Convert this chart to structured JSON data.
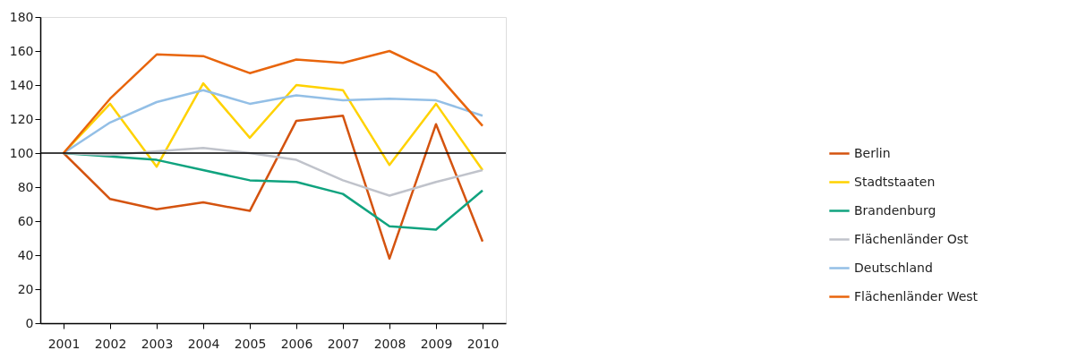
{
  "chart_data": {
    "type": "line",
    "categories": [
      "2001",
      "2002",
      "2003",
      "2004",
      "2005",
      "2006",
      "2007",
      "2008",
      "2009",
      "2010"
    ],
    "series": [
      {
        "name": "Berlin",
        "color": "#d4530f",
        "values": [
          100,
          73,
          67,
          71,
          66,
          119,
          122,
          38,
          117,
          48
        ]
      },
      {
        "name": "Stadtstaaten",
        "color": "#ffd200",
        "values": [
          100,
          129,
          92,
          141,
          109,
          140,
          137,
          93,
          129,
          90
        ]
      },
      {
        "name": "Brandenburg",
        "color": "#10a37f",
        "values": [
          100,
          98,
          96,
          90,
          84,
          83,
          76,
          57,
          55,
          78
        ]
      },
      {
        "name": "Flächenländer Ost",
        "color": "#c0c3cb",
        "values": [
          100,
          99,
          101,
          103,
          100,
          96,
          84,
          75,
          83,
          90
        ]
      },
      {
        "name": "Deutschland",
        "color": "#93bfe6",
        "values": [
          100,
          118,
          130,
          137,
          129,
          134,
          131,
          132,
          131,
          122
        ]
      },
      {
        "name": "Flächenländer West",
        "color": "#e8650c",
        "values": [
          100,
          132,
          158,
          157,
          147,
          155,
          153,
          160,
          147,
          116
        ]
      }
    ],
    "ylim": [
      0,
      180
    ],
    "yticks": [
      0,
      20,
      40,
      60,
      80,
      100,
      120,
      140,
      160,
      180
    ],
    "ref_lines": [
      {
        "axis": "y",
        "value": 100,
        "color": "#000000"
      }
    ],
    "grid": false,
    "legend": "right",
    "marker": "none",
    "line_style": "solid"
  }
}
